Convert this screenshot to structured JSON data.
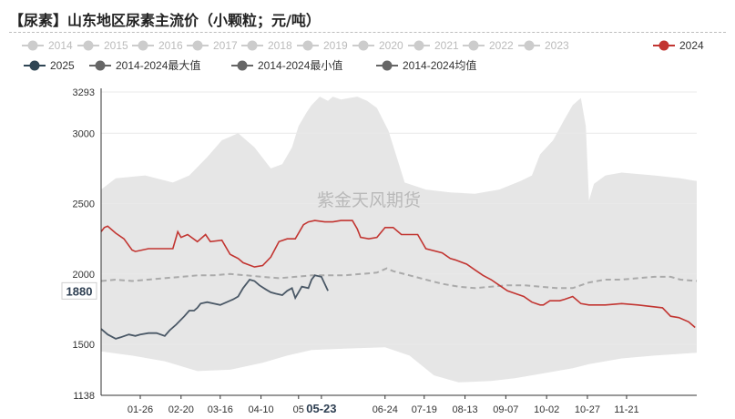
{
  "title": "【尿素】山东地区尿素主流价（小颗粒；元/吨）",
  "watermark": "紫金天风期货",
  "chart_data": {
    "type": "line",
    "title": "【尿素】山东地区尿素主流价（小颗粒；元/吨）",
    "ylim": [
      1138,
      3293
    ],
    "y_ticks": [
      "3293",
      "3000",
      "2500",
      "2000",
      "1500",
      "1138"
    ],
    "x_ticks": [
      "01-26",
      "02-20",
      "03-16",
      "04-10",
      "05",
      "05-23",
      "06-24",
      "07-19",
      "08-13",
      "09-07",
      "10-02",
      "10-27",
      "11-21"
    ],
    "x_tick_days": [
      25,
      50,
      74,
      99,
      122,
      136,
      175,
      199,
      224,
      249,
      274,
      299,
      323
    ],
    "x_domain_days": [
      1,
      366
    ],
    "highlight_x": "05-23",
    "current_value": "1880",
    "legend": [
      {
        "label": "2014",
        "color": "#cccccc",
        "active": false
      },
      {
        "label": "2015",
        "color": "#cccccc",
        "active": false
      },
      {
        "label": "2016",
        "color": "#cccccc",
        "active": false
      },
      {
        "label": "2017",
        "color": "#cccccc",
        "active": false
      },
      {
        "label": "2018",
        "color": "#cccccc",
        "active": false
      },
      {
        "label": "2019",
        "color": "#cccccc",
        "active": false
      },
      {
        "label": "2020",
        "color": "#cccccc",
        "active": false
      },
      {
        "label": "2021",
        "color": "#cccccc",
        "active": false
      },
      {
        "label": "2022",
        "color": "#cccccc",
        "active": false
      },
      {
        "label": "2023",
        "color": "#cccccc",
        "active": false
      },
      {
        "label": "2024",
        "color": "#c23531",
        "active": true
      },
      {
        "label": "2025",
        "color": "#2f4554",
        "active": true
      },
      {
        "label": "2014-2024最大值",
        "color": "#666666",
        "active": true
      },
      {
        "label": "2014-2024最小值",
        "color": "#666666",
        "active": true
      },
      {
        "label": "2014-2024均值",
        "color": "#666666",
        "active": true
      }
    ],
    "series": [
      {
        "name": "2014-2024最大值",
        "color": "#e6e6e6",
        "x": [
          1,
          10,
          28,
          45,
          55,
          66,
          75,
          85,
          95,
          105,
          112,
          118,
          122,
          127,
          130,
          135,
          140,
          143,
          148,
          153,
          158,
          164,
          170,
          177,
          183,
          187,
          200,
          215,
          230,
          245,
          258,
          265,
          270,
          278,
          285,
          290,
          295,
          298,
          300,
          303,
          310,
          320,
          340,
          356,
          366
        ],
        "values": [
          2600,
          2680,
          2700,
          2650,
          2700,
          2830,
          2950,
          3000,
          2900,
          2750,
          2780,
          2900,
          3050,
          3150,
          3200,
          3260,
          3230,
          3260,
          3240,
          3250,
          3260,
          3230,
          3180,
          3020,
          2800,
          2650,
          2600,
          2580,
          2570,
          2600,
          2660,
          2700,
          2850,
          2950,
          3100,
          3200,
          3250,
          3050,
          2520,
          2640,
          2700,
          2720,
          2700,
          2680,
          2660
        ]
      },
      {
        "name": "2014-2024最小值",
        "color": "#e6e6e6",
        "x": [
          1,
          20,
          40,
          60,
          80,
          100,
          115,
          130,
          150,
          175,
          190,
          205,
          220,
          240,
          255,
          270,
          290,
          300,
          320,
          340,
          366
        ],
        "values": [
          1450,
          1420,
          1380,
          1310,
          1320,
          1370,
          1420,
          1460,
          1470,
          1480,
          1420,
          1280,
          1230,
          1240,
          1260,
          1290,
          1330,
          1360,
          1400,
          1420,
          1440
        ]
      },
      {
        "name": "2014-2024均值",
        "color": "#aaaaaa",
        "x": [
          1,
          10,
          20,
          30,
          40,
          50,
          60,
          70,
          80,
          90,
          100,
          110,
          120,
          130,
          140,
          150,
          160,
          170,
          176,
          180,
          190,
          200,
          210,
          220,
          230,
          240,
          250,
          260,
          270,
          280,
          290,
          300,
          310,
          320,
          330,
          340,
          350,
          356,
          366
        ],
        "values": [
          1950,
          1960,
          1950,
          1960,
          1970,
          1980,
          1990,
          1990,
          2000,
          1990,
          1980,
          1970,
          1980,
          1990,
          1990,
          1990,
          2000,
          2010,
          2040,
          2020,
          1990,
          1960,
          1930,
          1910,
          1900,
          1910,
          1920,
          1920,
          1910,
          1900,
          1900,
          1940,
          1960,
          1960,
          1970,
          1980,
          1980,
          1960,
          1950
        ]
      },
      {
        "name": "2024",
        "color": "#c23531",
        "x": [
          1,
          3,
          5,
          10,
          15,
          20,
          22,
          30,
          35,
          45,
          48,
          50,
          54,
          60,
          65,
          68,
          75,
          80,
          85,
          88,
          95,
          100,
          105,
          110,
          115,
          120,
          125,
          128,
          132,
          138,
          143,
          148,
          155,
          158,
          160,
          165,
          170,
          175,
          180,
          185,
          188,
          192,
          195,
          200,
          210,
          215,
          218,
          225,
          230,
          235,
          240,
          245,
          250,
          255,
          260,
          265,
          270,
          272,
          276,
          280,
          282,
          285,
          290,
          295,
          300,
          310,
          320,
          330,
          345,
          350,
          355,
          361,
          365
        ],
        "values": [
          2300,
          2330,
          2340,
          2290,
          2250,
          2170,
          2160,
          2180,
          2180,
          2180,
          2300,
          2260,
          2280,
          2230,
          2280,
          2230,
          2240,
          2140,
          2110,
          2080,
          2050,
          2060,
          2120,
          2230,
          2250,
          2250,
          2350,
          2370,
          2380,
          2370,
          2370,
          2380,
          2380,
          2320,
          2260,
          2250,
          2260,
          2330,
          2330,
          2280,
          2280,
          2280,
          2280,
          2180,
          2150,
          2110,
          2100,
          2070,
          2030,
          1990,
          1960,
          1920,
          1880,
          1860,
          1840,
          1800,
          1780,
          1780,
          1810,
          1810,
          1810,
          1820,
          1840,
          1790,
          1780,
          1780,
          1790,
          1780,
          1760,
          1700,
          1690,
          1660,
          1620
        ]
      },
      {
        "name": "2025",
        "color": "#4a5866",
        "x": [
          1,
          5,
          10,
          13,
          18,
          22,
          25,
          30,
          35,
          40,
          43,
          47,
          52,
          55,
          58,
          60,
          62,
          66,
          70,
          74,
          78,
          82,
          85,
          88,
          92,
          95,
          98,
          102,
          105,
          108,
          112,
          115,
          118,
          120,
          124,
          128,
          130,
          132,
          136,
          140
        ],
        "values": [
          1610,
          1570,
          1540,
          1550,
          1570,
          1560,
          1570,
          1580,
          1580,
          1560,
          1600,
          1640,
          1700,
          1740,
          1740,
          1760,
          1790,
          1800,
          1790,
          1780,
          1800,
          1820,
          1840,
          1900,
          1960,
          1950,
          1920,
          1890,
          1870,
          1860,
          1850,
          1880,
          1900,
          1830,
          1910,
          1900,
          1960,
          1990,
          1980,
          1880
        ]
      }
    ]
  }
}
